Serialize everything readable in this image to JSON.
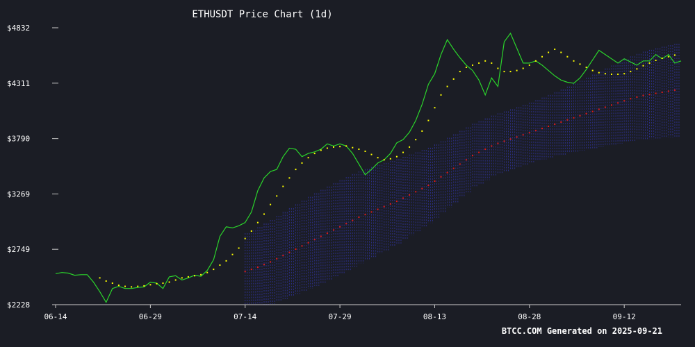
{
  "chart_data": {
    "type": "line",
    "title": "ETHUSDT Price Chart (1d)",
    "footer": "BTCC.COM Generated on 2025-09-21",
    "y_ticks": [
      "$4832",
      "$4311",
      "$3790",
      "$3269",
      "$2749",
      "$2228"
    ],
    "y_tick_values": [
      4832,
      4311,
      3790,
      3269,
      2749,
      2228
    ],
    "x_ticks": [
      "06-14",
      "06-29",
      "07-14",
      "07-29",
      "08-13",
      "08-28",
      "09-12"
    ],
    "x_tick_index": [
      0,
      15,
      30,
      45,
      60,
      75,
      90
    ],
    "ylim": [
      2228,
      4832
    ],
    "grid": false,
    "colors": {
      "background": "#1b1d25",
      "price": "#2bd42b",
      "short_ma": "#ffff00",
      "long_ma": "#e01b1b",
      "band": "#2c2f8a",
      "text": "#ffffff",
      "axis": "#cccccc"
    },
    "series": [
      {
        "style": "solid-line",
        "color": "#2bd42b",
        "start_index": 0,
        "values": [
          2520,
          2530,
          2525,
          2505,
          2510,
          2510,
          2440,
          2350,
          2250,
          2380,
          2400,
          2380,
          2380,
          2390,
          2395,
          2440,
          2430,
          2380,
          2490,
          2500,
          2460,
          2480,
          2505,
          2495,
          2550,
          2650,
          2870,
          2960,
          2950,
          2970,
          3000,
          3100,
          3300,
          3420,
          3480,
          3500,
          3620,
          3700,
          3690,
          3620,
          3650,
          3665,
          3690,
          3740,
          3720,
          3740,
          3720,
          3650,
          3550,
          3450,
          3500,
          3560,
          3590,
          3650,
          3750,
          3780,
          3850,
          3960,
          4110,
          4300,
          4400,
          4580,
          4720,
          4630,
          4550,
          4480,
          4430,
          4340,
          4200,
          4360,
          4280,
          4700,
          4780,
          4640,
          4500,
          4500,
          4520,
          4480,
          4430,
          4380,
          4340,
          4320,
          4310,
          4360,
          4440,
          4530,
          4620,
          4580,
          4540,
          4500,
          4540,
          4510,
          4480,
          4520,
          4520,
          4580,
          4540,
          4580,
          4500,
          4520
        ]
      },
      {
        "style": "dotted",
        "color": "#ffff00",
        "start_index": 7,
        "values": [
          2480,
          2450,
          2430,
          2410,
          2400,
          2395,
          2400,
          2405,
          2415,
          2425,
          2430,
          2440,
          2460,
          2480,
          2490,
          2500,
          2510,
          2530,
          2560,
          2600,
          2640,
          2700,
          2760,
          2850,
          2920,
          3000,
          3080,
          3170,
          3250,
          3340,
          3420,
          3500,
          3560,
          3610,
          3650,
          3680,
          3700,
          3710,
          3715,
          3720,
          3705,
          3690,
          3670,
          3640,
          3610,
          3590,
          3600,
          3620,
          3660,
          3710,
          3780,
          3860,
          3960,
          4080,
          4200,
          4280,
          4350,
          4420,
          4460,
          4480,
          4500,
          4520,
          4500,
          4450,
          4420,
          4420,
          4430,
          4450,
          4480,
          4520,
          4560,
          4600,
          4630,
          4600,
          4560,
          4520,
          4490,
          4460,
          4430,
          4410,
          4400,
          4395,
          4395,
          4400,
          4420,
          4445,
          4475,
          4500,
          4525,
          4545,
          4560,
          4575,
          4585,
          4590,
          4595
        ]
      },
      {
        "style": "dotted",
        "color": "#e01b1b",
        "start_index": 30,
        "values": [
          2540,
          2560,
          2580,
          2605,
          2630,
          2660,
          2690,
          2720,
          2750,
          2780,
          2810,
          2840,
          2870,
          2900,
          2930,
          2960,
          2990,
          3020,
          3050,
          3075,
          3100,
          3125,
          3150,
          3175,
          3200,
          3230,
          3260,
          3290,
          3320,
          3350,
          3390,
          3430,
          3470,
          3510,
          3550,
          3590,
          3630,
          3660,
          3690,
          3720,
          3745,
          3765,
          3785,
          3805,
          3825,
          3845,
          3865,
          3885,
          3905,
          3925,
          3945,
          3965,
          3985,
          4005,
          4025,
          4045,
          4065,
          4085,
          4105,
          4125,
          4145,
          4165,
          4180,
          4195,
          4205,
          4215,
          4225,
          4235,
          4245,
          4250,
          4255,
          4258
        ]
      }
    ]
  }
}
